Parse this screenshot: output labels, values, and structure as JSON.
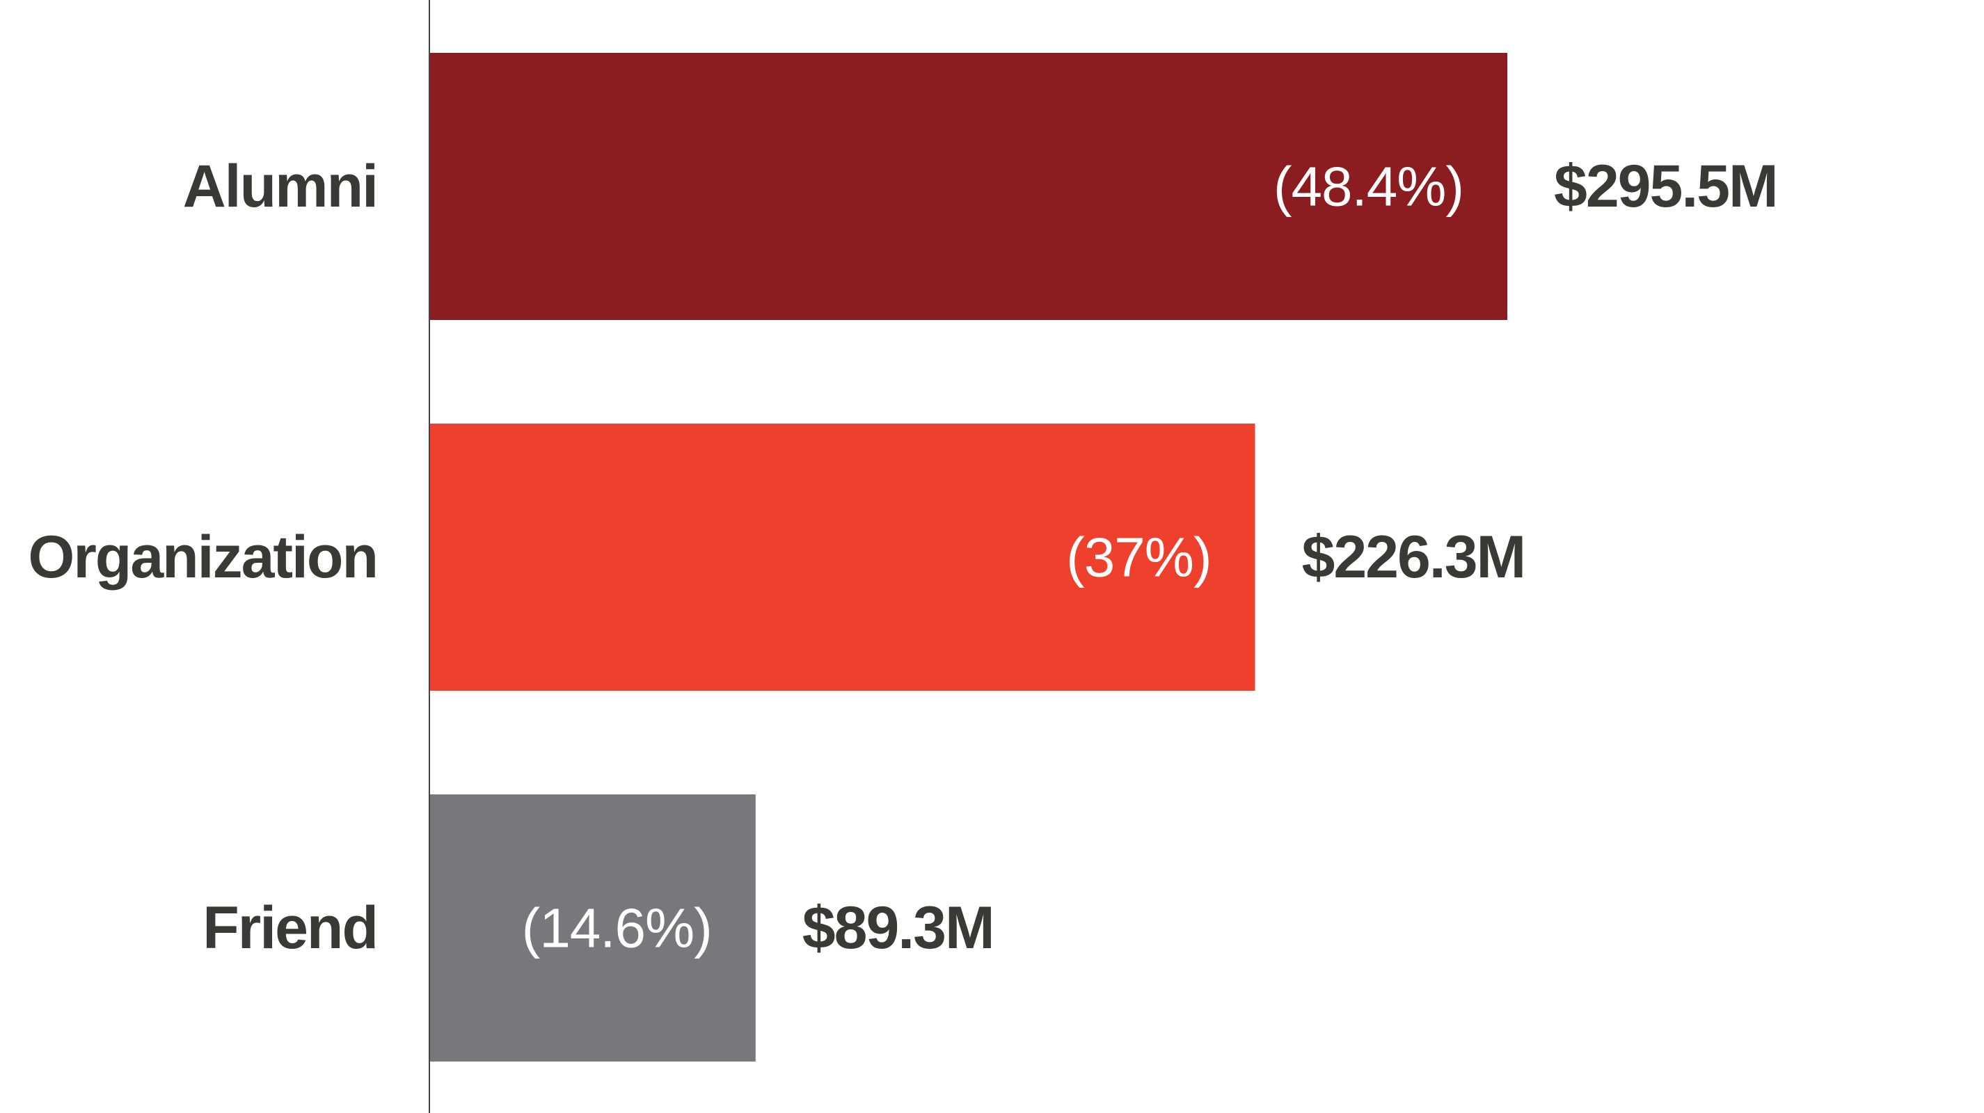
{
  "chart_data": {
    "type": "bar",
    "orientation": "horizontal",
    "categories": [
      "Alumni",
      "Organization",
      "Friend"
    ],
    "values": [
      295.5,
      226.3,
      89.3
    ],
    "value_labels": [
      "$295.5M",
      "$226.3M",
      "$89.3M"
    ],
    "percent_labels": [
      "(48.4%)",
      "(37%)",
      "(14.6%)"
    ],
    "colors": [
      "#8b1c1f",
      "#ee402d",
      "#77787b"
    ],
    "title": "",
    "xlabel": "",
    "ylabel": "",
    "grid": false,
    "legend": "none"
  },
  "style": {
    "label_color": "#383a35",
    "percent_color": "#ffffff",
    "axis_color": "#444444"
  }
}
